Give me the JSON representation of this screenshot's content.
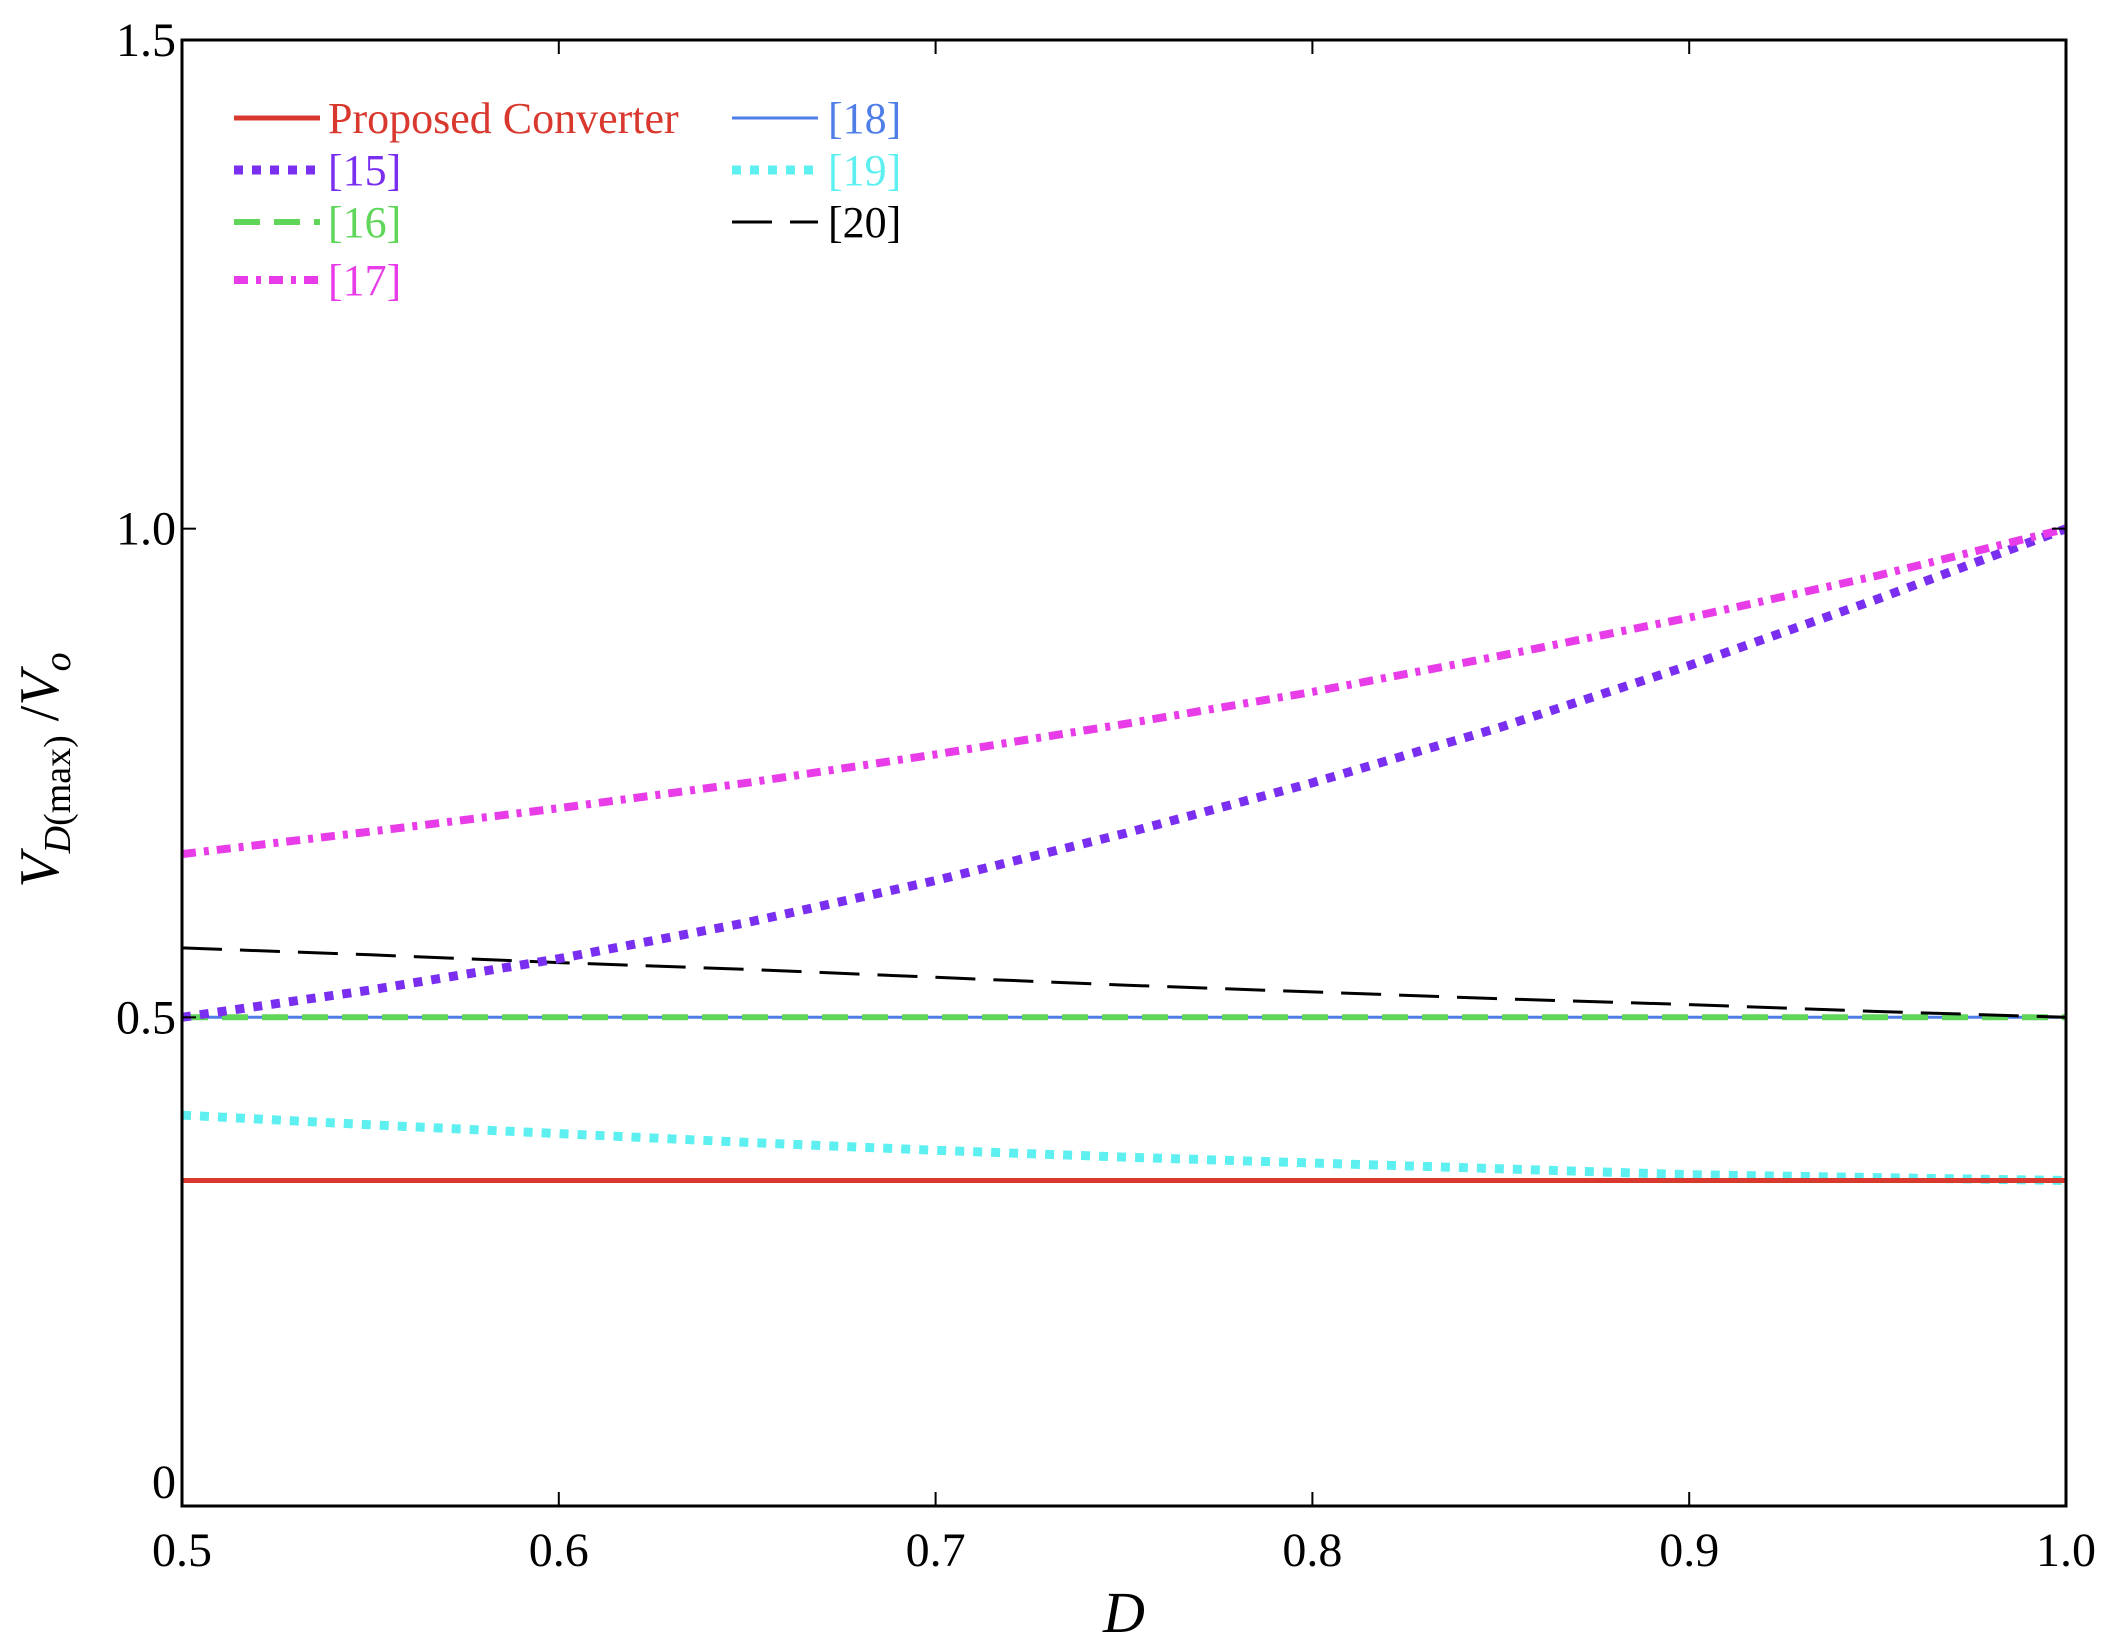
{
  "chart_data": {
    "type": "line",
    "title": "",
    "xlabel": "D",
    "ylabel": {
      "main": "V",
      "sub_italic": "D",
      "sub_plain": "(max)",
      "suffix_sep": " /",
      "tail": "V",
      "tail_sub": "o"
    },
    "xlim": [
      0.5,
      1.0
    ],
    "ylim": [
      0,
      1.5
    ],
    "xticks": [
      0.5,
      0.6,
      0.7,
      0.8,
      0.9,
      1.0
    ],
    "xtick_labels": [
      "0.5",
      "0.6",
      "0.7",
      "0.8",
      "0.9",
      "1.0"
    ],
    "yticks": [
      0,
      0.5,
      1.0,
      1.5
    ],
    "ytick_labels": [
      "0",
      "0.5",
      "1.0",
      "1.5"
    ],
    "grid": false,
    "legend_position": "top-left, two columns",
    "series": [
      {
        "name": "Proposed Converter",
        "color": "#d9382e",
        "style": "solid",
        "x": [
          0.5,
          0.6,
          0.7,
          0.8,
          0.9,
          1.0
        ],
        "y": [
          0.333,
          0.333,
          0.333,
          0.333,
          0.333,
          0.333
        ]
      },
      {
        "name": "[15]",
        "color": "#7a2ff0",
        "style": "dotted",
        "x": [
          0.5,
          0.55,
          0.6,
          0.65,
          0.7,
          0.75,
          0.8,
          0.85,
          0.9,
          0.95,
          1.0
        ],
        "y": [
          0.5,
          0.528,
          0.56,
          0.597,
          0.64,
          0.688,
          0.74,
          0.797,
          0.86,
          0.928,
          1.0
        ]
      },
      {
        "name": "[16]",
        "color": "#5fd65a",
        "style": "dashed",
        "x": [
          0.5,
          0.6,
          0.7,
          0.8,
          0.9,
          1.0
        ],
        "y": [
          0.5,
          0.5,
          0.5,
          0.5,
          0.5,
          0.5
        ]
      },
      {
        "name": "[17]",
        "color": "#e83ce8",
        "style": "dash-dot",
        "x": [
          0.5,
          0.55,
          0.6,
          0.65,
          0.7,
          0.75,
          0.8,
          0.85,
          0.9,
          0.95,
          1.0
        ],
        "y": [
          0.667,
          0.69,
          0.714,
          0.74,
          0.769,
          0.8,
          0.833,
          0.87,
          0.909,
          0.952,
          1.0
        ]
      },
      {
        "name": "[18]",
        "color": "#4f7ee8",
        "style": "solid",
        "x": [
          0.5,
          0.6,
          0.7,
          0.8,
          0.9,
          1.0
        ],
        "y": [
          0.5,
          0.5,
          0.5,
          0.5,
          0.5,
          0.5
        ]
      },
      {
        "name": "[19]",
        "color": "#5ef0f0",
        "style": "dotted",
        "x": [
          0.5,
          0.55,
          0.6,
          0.65,
          0.7,
          0.75,
          0.8,
          0.85,
          0.9,
          0.95,
          1.0
        ],
        "y": [
          0.4,
          0.39,
          0.381,
          0.372,
          0.364,
          0.357,
          0.351,
          0.345,
          0.339,
          0.336,
          0.333
        ]
      },
      {
        "name": "[20]",
        "color": "#000000",
        "style": "long-dash",
        "x": [
          0.5,
          0.55,
          0.6,
          0.65,
          0.7,
          0.75,
          0.8,
          0.85,
          0.9,
          0.95,
          1.0
        ],
        "y": [
          0.571,
          0.564,
          0.556,
          0.549,
          0.541,
          0.533,
          0.526,
          0.519,
          0.513,
          0.506,
          0.5
        ]
      }
    ]
  }
}
